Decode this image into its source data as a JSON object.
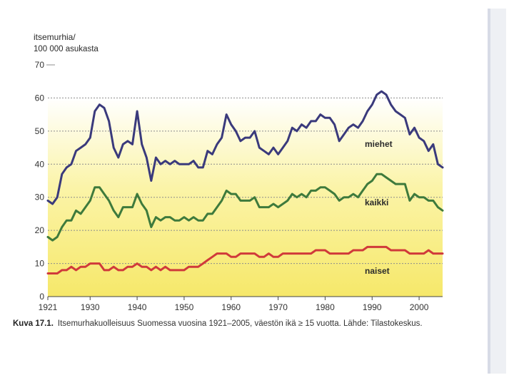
{
  "chart_data": {
    "type": "line",
    "ylabel_line1": "itsemurhia/",
    "ylabel_line2": "100 000 asukasta",
    "ylim": [
      0,
      70
    ],
    "yticks": [
      0,
      10,
      20,
      30,
      40,
      50,
      60,
      70
    ],
    "xticks": [
      1921,
      1930,
      1940,
      1950,
      1960,
      1970,
      1980,
      1990,
      2000
    ],
    "xlim": [
      1921,
      2005
    ],
    "grid": true,
    "series": [
      {
        "name": "miehet",
        "color": "#3a3a7c",
        "x": [
          1921,
          1922,
          1923,
          1924,
          1925,
          1926,
          1927,
          1928,
          1929,
          1930,
          1931,
          1932,
          1933,
          1934,
          1935,
          1936,
          1937,
          1938,
          1939,
          1940,
          1941,
          1942,
          1943,
          1944,
          1945,
          1946,
          1947,
          1948,
          1949,
          1950,
          1951,
          1952,
          1953,
          1954,
          1955,
          1956,
          1957,
          1958,
          1959,
          1960,
          1961,
          1962,
          1963,
          1964,
          1965,
          1966,
          1967,
          1968,
          1969,
          1970,
          1971,
          1972,
          1973,
          1974,
          1975,
          1976,
          1977,
          1978,
          1979,
          1980,
          1981,
          1982,
          1983,
          1984,
          1985,
          1986,
          1987,
          1988,
          1989,
          1990,
          1991,
          1992,
          1993,
          1994,
          1995,
          1996,
          1997,
          1998,
          1999,
          2000,
          2001,
          2002,
          2003,
          2004,
          2005
        ],
        "values": [
          29,
          28,
          30,
          37,
          39,
          40,
          44,
          45,
          46,
          48,
          56,
          58,
          57,
          53,
          45,
          42,
          46,
          47,
          46,
          56,
          46,
          42,
          35,
          42,
          40,
          41,
          40,
          41,
          40,
          40,
          40,
          41,
          39,
          39,
          44,
          43,
          46,
          48,
          55,
          52,
          50,
          47,
          48,
          48,
          50,
          45,
          44,
          43,
          45,
          43,
          45,
          47,
          51,
          50,
          52,
          51,
          53,
          53,
          55,
          54,
          54,
          52,
          47,
          49,
          51,
          52,
          51,
          53,
          56,
          58,
          61,
          62,
          61,
          58,
          56,
          55,
          54,
          49,
          51,
          48,
          47,
          44,
          46,
          40,
          39
        ]
      },
      {
        "name": "kaikki",
        "color": "#3e7a3c",
        "x": [
          1921,
          1922,
          1923,
          1924,
          1925,
          1926,
          1927,
          1928,
          1929,
          1930,
          1931,
          1932,
          1933,
          1934,
          1935,
          1936,
          1937,
          1938,
          1939,
          1940,
          1941,
          1942,
          1943,
          1944,
          1945,
          1946,
          1947,
          1948,
          1949,
          1950,
          1951,
          1952,
          1953,
          1954,
          1955,
          1956,
          1957,
          1958,
          1959,
          1960,
          1961,
          1962,
          1963,
          1964,
          1965,
          1966,
          1967,
          1968,
          1969,
          1970,
          1971,
          1972,
          1973,
          1974,
          1975,
          1976,
          1977,
          1978,
          1979,
          1980,
          1981,
          1982,
          1983,
          1984,
          1985,
          1986,
          1987,
          1988,
          1989,
          1990,
          1991,
          1992,
          1993,
          1994,
          1995,
          1996,
          1997,
          1998,
          1999,
          2000,
          2001,
          2002,
          2003,
          2004,
          2005
        ],
        "values": [
          18,
          17,
          18,
          21,
          23,
          23,
          26,
          25,
          27,
          29,
          33,
          33,
          31,
          29,
          26,
          24,
          27,
          27,
          27,
          31,
          28,
          26,
          21,
          24,
          23,
          24,
          24,
          23,
          23,
          24,
          23,
          24,
          23,
          23,
          25,
          25,
          27,
          29,
          32,
          31,
          31,
          29,
          29,
          29,
          30,
          27,
          27,
          27,
          28,
          27,
          28,
          29,
          31,
          30,
          31,
          30,
          32,
          32,
          33,
          33,
          32,
          31,
          29,
          30,
          30,
          31,
          30,
          32,
          34,
          35,
          37,
          37,
          36,
          35,
          34,
          34,
          34,
          29,
          31,
          30,
          30,
          29,
          29,
          27,
          26
        ]
      },
      {
        "name": "naiset",
        "color": "#d03a3a",
        "x": [
          1921,
          1922,
          1923,
          1924,
          1925,
          1926,
          1927,
          1928,
          1929,
          1930,
          1931,
          1932,
          1933,
          1934,
          1935,
          1936,
          1937,
          1938,
          1939,
          1940,
          1941,
          1942,
          1943,
          1944,
          1945,
          1946,
          1947,
          1948,
          1949,
          1950,
          1951,
          1952,
          1953,
          1954,
          1955,
          1956,
          1957,
          1958,
          1959,
          1960,
          1961,
          1962,
          1963,
          1964,
          1965,
          1966,
          1967,
          1968,
          1969,
          1970,
          1971,
          1972,
          1973,
          1974,
          1975,
          1976,
          1977,
          1978,
          1979,
          1980,
          1981,
          1982,
          1983,
          1984,
          1985,
          1986,
          1987,
          1988,
          1989,
          1990,
          1991,
          1992,
          1993,
          1994,
          1995,
          1996,
          1997,
          1998,
          1999,
          2000,
          2001,
          2002,
          2003,
          2004,
          2005
        ],
        "values": [
          7,
          7,
          7,
          8,
          8,
          9,
          8,
          9,
          9,
          10,
          10,
          10,
          8,
          8,
          9,
          8,
          8,
          9,
          9,
          10,
          9,
          9,
          8,
          9,
          8,
          9,
          8,
          8,
          8,
          8,
          9,
          9,
          9,
          10,
          11,
          12,
          13,
          13,
          13,
          12,
          12,
          13,
          13,
          13,
          13,
          12,
          12,
          13,
          12,
          12,
          13,
          13,
          13,
          13,
          13,
          13,
          13,
          14,
          14,
          14,
          13,
          13,
          13,
          13,
          13,
          14,
          14,
          14,
          15,
          15,
          15,
          15,
          15,
          14,
          14,
          14,
          14,
          13,
          13,
          13,
          13,
          14,
          13,
          13,
          13
        ]
      }
    ],
    "labels": {
      "miehet": "miehet",
      "kaikki": "kaikki",
      "naiset": "naiset"
    },
    "caption_prefix": "Kuva 17.1.",
    "caption": "Itsemurhakuolleisuus Suomessa vuosina 1921–2005, väestön ikä ≥ 15 vuotta. Lähde: Tilastokeskus."
  },
  "colors": {
    "grid": "#8c8c8c",
    "axis": "#444444",
    "bg_top": "#ffffff",
    "bg_mid": "#fbf4a8",
    "bg_bottom": "#f6e86a"
  }
}
